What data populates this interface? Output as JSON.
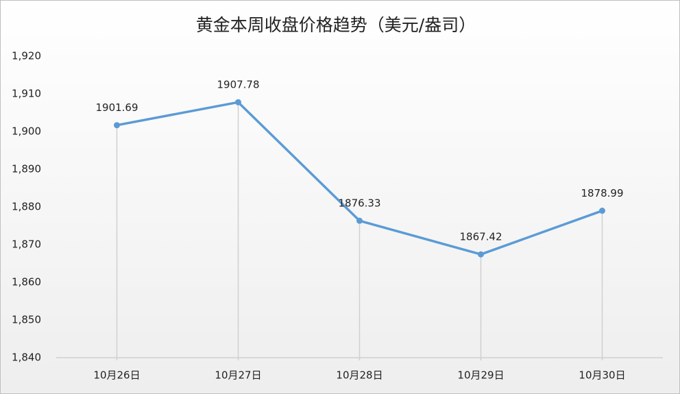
{
  "chart_data": {
    "type": "line",
    "title": "黄金本周收盘价格趋势（美元/盎司）",
    "categories": [
      "10月26日",
      "10月27日",
      "10月28日",
      "10月29日",
      "10月30日"
    ],
    "values": [
      1901.69,
      1907.78,
      1876.33,
      1867.42,
      1878.99
    ],
    "color": "#5b9bd5",
    "ylim": [
      1840,
      1920
    ],
    "yticks": [
      {
        "value": 1840,
        "label": "1,840"
      },
      {
        "value": 1850,
        "label": "1,850"
      },
      {
        "value": 1860,
        "label": "1,860"
      },
      {
        "value": 1870,
        "label": "1,870"
      },
      {
        "value": 1880,
        "label": "1,880"
      },
      {
        "value": 1890,
        "label": "1,890"
      },
      {
        "value": 1900,
        "label": "1,900"
      },
      {
        "value": 1910,
        "label": "1,910"
      },
      {
        "value": 1920,
        "label": "1,920"
      }
    ],
    "grid": false
  }
}
